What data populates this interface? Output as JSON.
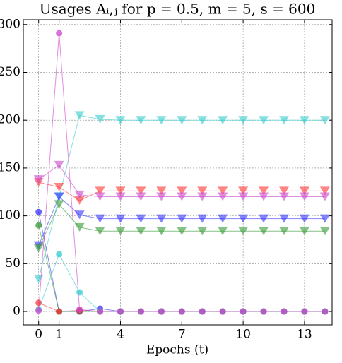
{
  "chart_data": {
    "type": "line",
    "title": "Usages Aᵢ,ⱼ for p = 0.5, m = 5, s = 600",
    "x_label": "Epochs (t)",
    "x": [
      0,
      1,
      2,
      3,
      4,
      5,
      6,
      7,
      8,
      9,
      10,
      11,
      12,
      13,
      14
    ],
    "xlim": [
      -0.75,
      14.35
    ],
    "xticks": [
      0,
      1,
      4,
      7,
      10,
      13
    ],
    "ylim": [
      -14,
      305
    ],
    "yticks": [
      0,
      50,
      100,
      150,
      200,
      250,
      300
    ],
    "grid": true,
    "series": [
      {
        "color": "#33cccc",
        "marker": "triangle",
        "values": [
          34,
          120,
          205,
          201,
          200,
          200,
          200,
          200,
          200,
          200,
          200,
          200,
          200,
          200,
          200
        ]
      },
      {
        "color": "#ff3333",
        "marker": "triangle",
        "values": [
          135,
          130,
          116,
          126,
          126,
          126,
          126,
          126,
          126,
          126,
          126,
          126,
          126,
          126,
          126
        ]
      },
      {
        "color": "#cc44cc",
        "marker": "triangle",
        "values": [
          138,
          153,
          122,
          120,
          120,
          120,
          120,
          120,
          120,
          120,
          120,
          120,
          120,
          120,
          120
        ]
      },
      {
        "color": "#3333ff",
        "marker": "triangle",
        "values": [
          69,
          120,
          101,
          97,
          97,
          97,
          97,
          97,
          97,
          97,
          97,
          97,
          97,
          97,
          97
        ]
      },
      {
        "color": "#339933",
        "marker": "triangle",
        "values": [
          66,
          112,
          88,
          84,
          84,
          84,
          84,
          84,
          84,
          84,
          84,
          84,
          84,
          84,
          84
        ]
      },
      {
        "color": "#3333ff",
        "marker": "circle",
        "values": [
          104,
          0,
          0,
          3,
          0,
          0,
          0,
          0,
          0,
          0,
          0,
          0,
          0,
          0,
          0
        ]
      },
      {
        "color": "#339933",
        "marker": "circle",
        "values": [
          90,
          0,
          0,
          0,
          0,
          0,
          0,
          0,
          0,
          0,
          0,
          0,
          0,
          0,
          0
        ]
      },
      {
        "color": "#ff3333",
        "marker": "circle",
        "values": [
          9,
          0,
          1,
          0,
          0,
          0,
          0,
          0,
          0,
          0,
          0,
          0,
          0,
          0,
          0
        ]
      },
      {
        "color": "#33cccc",
        "marker": "circle",
        "values": [
          2,
          60,
          20,
          0,
          0,
          0,
          0,
          0,
          0,
          0,
          0,
          0,
          0,
          0,
          0
        ]
      },
      {
        "color": "#cc44cc",
        "marker": "circle",
        "values": [
          1,
          291,
          2,
          0,
          0,
          0,
          0,
          0,
          0,
          0,
          0,
          0,
          0,
          0,
          0
        ]
      }
    ]
  }
}
